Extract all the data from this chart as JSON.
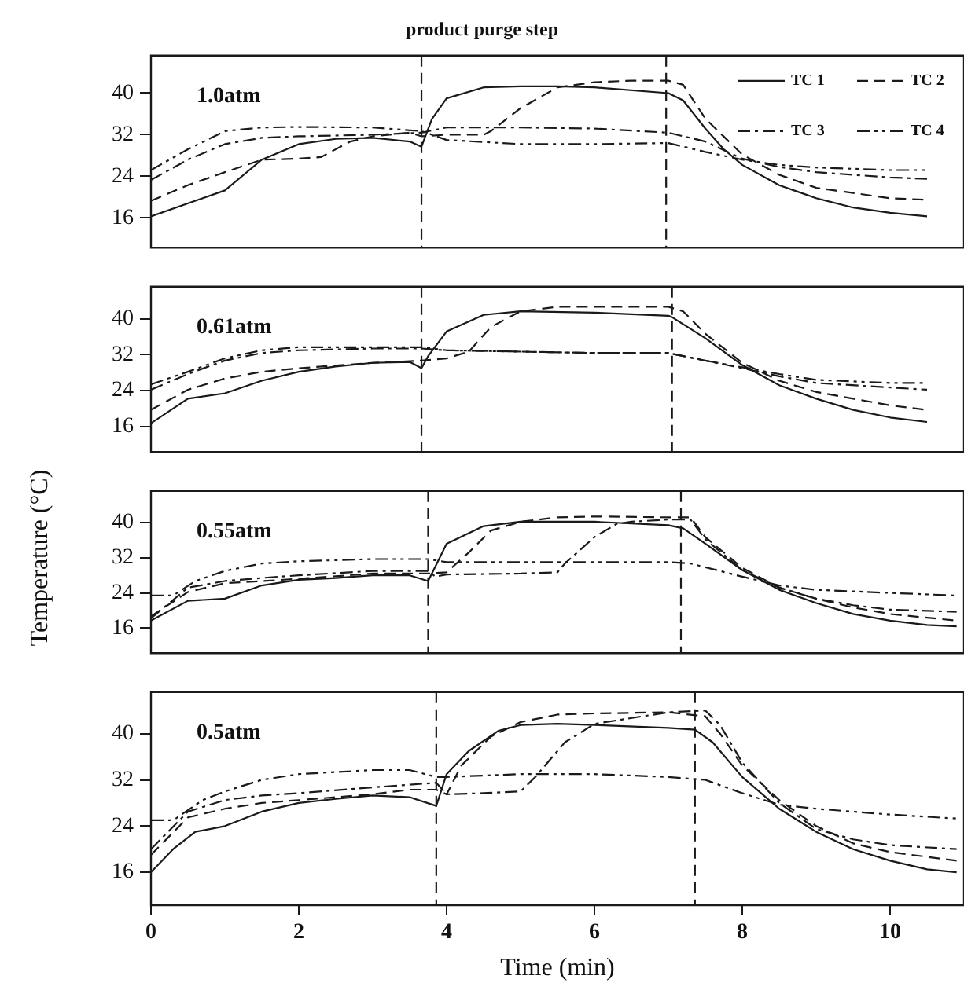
{
  "chart_data": [
    {
      "type": "line",
      "title": "product purge step",
      "annotations": [
        "1.0atm"
      ],
      "xlim": [
        0,
        11
      ],
      "ylim": [
        10.3,
        47.2
      ],
      "yticks": [
        16,
        24,
        32,
        40
      ],
      "tick_labels": "y",
      "legend": "top right",
      "ref_lines": [
        {
          "axis": "x",
          "value": 3.66,
          "color": "#1a1a1a",
          "line_style": "dashed"
        },
        {
          "axis": "x",
          "value": 6.97,
          "color": "#1a1a1a",
          "line_style": "dashed"
        }
      ],
      "series": [
        {
          "name": "TC 1",
          "color": "#1a1a1a",
          "line_style": "solid",
          "x": [
            0,
            1,
            1.5,
            2,
            2.5,
            3,
            3.5,
            3.66,
            3.8,
            4,
            4.5,
            5,
            5.5,
            6,
            7,
            7.2,
            7.5,
            7.75,
            8,
            8.5,
            9,
            9.5,
            10,
            10.5
          ],
          "values": [
            16.3,
            21.3,
            27.2,
            30.2,
            31.2,
            31.4,
            30.7,
            29.7,
            35,
            39,
            41.1,
            41.3,
            41.3,
            41.1,
            40,
            38.6,
            33.2,
            29.2,
            26.2,
            22.3,
            19.8,
            18,
            17,
            16.3
          ]
        },
        {
          "name": "TC 2",
          "color": "#1a1a1a",
          "line_style": "dashed",
          "x": [
            0,
            0.5,
            1,
            1.5,
            2,
            2.3,
            2.7,
            3,
            3.5,
            3.66,
            4,
            4.5,
            4.6,
            5,
            5.5,
            6,
            6.5,
            7,
            7.2,
            7.5,
            8,
            8.5,
            9,
            9.5,
            10,
            10.5
          ],
          "values": [
            19.3,
            22.3,
            24.8,
            27.2,
            27.4,
            27.7,
            30.7,
            31.7,
            32.4,
            31.7,
            32,
            32,
            32.7,
            37.1,
            41.1,
            42.1,
            42.4,
            42.4,
            41.6,
            35.1,
            28.2,
            24.3,
            21.8,
            20.8,
            19.8,
            19.5
          ]
        },
        {
          "name": "TC 3",
          "color": "#1a1a1a",
          "line_style": "dashdot",
          "x": [
            0,
            0.5,
            1,
            1.5,
            2,
            3,
            3.66,
            4,
            5,
            6,
            7,
            7.5,
            8,
            8.5,
            9,
            10,
            10.5
          ],
          "values": [
            23.3,
            27.2,
            30.2,
            31.4,
            31.7,
            32,
            32.4,
            33.4,
            33.4,
            33.2,
            32.4,
            30.7,
            27.4,
            25.8,
            24.8,
            23.8,
            23.5
          ]
        },
        {
          "name": "TC 4",
          "color": "#1a1a1a",
          "line_style": "dashdotdot",
          "x": [
            0,
            0.5,
            1,
            1.5,
            2,
            3,
            3.66,
            4,
            5,
            6,
            7,
            7.5,
            8,
            8.5,
            9,
            10,
            10.5
          ],
          "values": [
            25.2,
            29.2,
            32.7,
            33.4,
            33.5,
            33.4,
            32.7,
            31,
            30.2,
            30.2,
            30.4,
            28.7,
            27.2,
            26.2,
            25.7,
            25.2,
            25.2
          ]
        }
      ]
    },
    {
      "type": "line",
      "annotations": [
        "0.61atm"
      ],
      "xlim": [
        0,
        11
      ],
      "ylim": [
        10.3,
        47.2
      ],
      "yticks": [
        16,
        24,
        32,
        40
      ],
      "tick_labels": "y",
      "ref_lines": [
        {
          "axis": "x",
          "value": 3.66,
          "color": "#1a1a1a",
          "line_style": "dashed"
        },
        {
          "axis": "x",
          "value": 7.05,
          "color": "#1a1a1a",
          "line_style": "dashed"
        }
      ],
      "series": [
        {
          "color": "#1a1a1a",
          "line_style": "solid",
          "x": [
            0,
            0.5,
            1,
            1.5,
            2,
            2.5,
            3,
            3.5,
            3.66,
            3.75,
            4,
            4.5,
            5,
            6,
            7,
            7.05,
            7.5,
            8,
            8.5,
            9,
            9.5,
            10,
            10.5
          ],
          "values": [
            16.7,
            22.2,
            23.4,
            26.2,
            28.2,
            29.4,
            30.2,
            30.4,
            29,
            31.7,
            37.2,
            40.9,
            41.7,
            41.4,
            40.7,
            40.4,
            35.7,
            29.7,
            25.2,
            22.2,
            19.7,
            18,
            17
          ]
        },
        {
          "color": "#1a1a1a",
          "line_style": "dashed",
          "x": [
            0,
            0.5,
            1,
            1.5,
            2,
            3,
            3.66,
            4,
            4.3,
            4.6,
            5,
            5.5,
            6,
            7,
            7.2,
            7.5,
            8,
            8.5,
            9,
            9.5,
            10,
            10.5
          ],
          "values": [
            19.7,
            24.2,
            26.7,
            28.2,
            29,
            30.2,
            30.7,
            31.2,
            32.7,
            38.2,
            41.7,
            42.7,
            42.7,
            42.7,
            41.7,
            36.7,
            30.2,
            26.2,
            23.7,
            22.2,
            20.7,
            19.7
          ]
        },
        {
          "color": "#1a1a1a",
          "line_style": "dashdot",
          "x": [
            0,
            0.5,
            1,
            1.5,
            2,
            3,
            3.66,
            4,
            5,
            6,
            7,
            7.5,
            8,
            8.5,
            9,
            10,
            10.5
          ],
          "values": [
            24.2,
            27.7,
            30.7,
            32.4,
            33,
            33.4,
            33.4,
            33,
            32.7,
            32.4,
            32.4,
            30.7,
            29,
            27.2,
            25.7,
            24.7,
            24.2
          ]
        },
        {
          "color": "#1a1a1a",
          "line_style": "dashdotdot",
          "x": [
            0,
            0.5,
            1,
            1.5,
            2,
            3,
            3.66,
            4,
            5,
            6,
            7,
            7.5,
            8,
            8.5,
            9,
            10,
            10.5
          ],
          "values": [
            25.4,
            28.2,
            31.2,
            33,
            33.7,
            33.7,
            33.7,
            33,
            32.7,
            32.4,
            32.4,
            30.7,
            29.2,
            27.7,
            26.4,
            25.7,
            25.7
          ]
        }
      ]
    },
    {
      "type": "line",
      "ylabel": "Temperature (°C)",
      "annotations": [
        "0.55atm"
      ],
      "xlim": [
        0,
        11
      ],
      "ylim": [
        10.3,
        47.2
      ],
      "yticks": [
        16,
        24,
        32,
        40
      ],
      "tick_labels": "y",
      "ref_lines": [
        {
          "axis": "x",
          "value": 3.75,
          "color": "#1a1a1a",
          "line_style": "dashed"
        },
        {
          "axis": "x",
          "value": 7.17,
          "color": "#1a1a1a",
          "line_style": "dashed"
        }
      ],
      "series": [
        {
          "color": "#1a1a1a",
          "line_style": "solid",
          "x": [
            0,
            0.5,
            1,
            1.5,
            2,
            2.5,
            3,
            3.5,
            3.75,
            4,
            4.5,
            5,
            6,
            7,
            7.2,
            7.5,
            8,
            8.5,
            9,
            9.5,
            10,
            10.5,
            10.9
          ],
          "values": [
            17.7,
            22.2,
            22.7,
            25.7,
            27,
            27.4,
            28,
            28,
            26.7,
            35.2,
            39.2,
            40.2,
            40.2,
            39.4,
            38.7,
            35.2,
            29.2,
            24.7,
            21.7,
            19.2,
            17.7,
            16.7,
            16.4
          ]
        },
        {
          "color": "#1a1a1a",
          "line_style": "dashed",
          "x": [
            0,
            0.5,
            1,
            1.5,
            2,
            3,
            3.75,
            4,
            4.3,
            4.6,
            5,
            5.5,
            6,
            7,
            7.3,
            7.5,
            8,
            8.5,
            9,
            9.5,
            10,
            10.9
          ],
          "values": [
            18.7,
            24.2,
            26.2,
            26.7,
            27.2,
            28.4,
            28.4,
            28.7,
            33.2,
            38.2,
            40.2,
            41.2,
            41.4,
            41.2,
            41.2,
            36.7,
            29.7,
            25.2,
            22.7,
            20.7,
            19.2,
            17.7
          ]
        },
        {
          "color": "#1a1a1a",
          "line_style": "dashdot",
          "x": [
            0,
            0.5,
            1,
            1.5,
            2,
            3,
            3.75,
            3.85,
            4,
            5,
            5.5,
            5.6,
            6,
            6.3,
            6.5,
            7,
            7.3,
            7.5,
            8,
            8.5,
            9,
            9.5,
            10,
            10.9
          ],
          "values": [
            18.2,
            25.2,
            26.7,
            27.4,
            28,
            29,
            29,
            27.7,
            28.2,
            28.4,
            28.7,
            30.7,
            36.7,
            39.7,
            40.2,
            40.7,
            40.7,
            36.2,
            29.2,
            25.2,
            22.7,
            21.2,
            20.2,
            19.7
          ]
        },
        {
          "color": "#1a1a1a",
          "line_style": "dashdotdot",
          "x": [
            0,
            0.3,
            0.6,
            1,
            1.5,
            2,
            3,
            3.75,
            4,
            5,
            6,
            7,
            7.3,
            8,
            8.5,
            9,
            10,
            10.9
          ],
          "values": [
            23.4,
            23.4,
            26.7,
            29,
            30.7,
            31.2,
            31.7,
            31.7,
            31,
            31,
            31,
            31,
            30.7,
            27.7,
            25.7,
            24.7,
            24,
            23.4
          ]
        }
      ]
    },
    {
      "type": "line",
      "annotations": [
        "0.5atm"
      ],
      "xlabel": "Time (min)",
      "xlim": [
        0,
        11
      ],
      "xticks": [
        0,
        2,
        4,
        6,
        8,
        10
      ],
      "ylim": [
        10.3,
        47.2
      ],
      "yticks": [
        16,
        24,
        32,
        40
      ],
      "ref_lines": [
        {
          "axis": "x",
          "value": 3.86,
          "color": "#1a1a1a",
          "line_style": "dashed"
        },
        {
          "axis": "x",
          "value": 7.36,
          "color": "#1a1a1a",
          "line_style": "dashed"
        }
      ],
      "series": [
        {
          "color": "#1a1a1a",
          "line_style": "solid",
          "x": [
            0,
            0.3,
            0.6,
            1,
            1.5,
            2,
            2.5,
            3,
            3.5,
            3.86,
            4,
            4.3,
            4.7,
            5,
            5.5,
            6,
            7,
            7.36,
            7.6,
            8,
            8.5,
            9,
            9.5,
            10,
            10.5,
            10.9
          ],
          "values": [
            16,
            20,
            23,
            24,
            26.5,
            28,
            28.7,
            29.3,
            29,
            27.5,
            33,
            37,
            40.5,
            41.5,
            41.7,
            41.5,
            41,
            40.7,
            38.5,
            32.5,
            27,
            23,
            20,
            18,
            16.5,
            16
          ]
        },
        {
          "color": "#1a1a1a",
          "line_style": "dashed",
          "x": [
            0,
            0.5,
            1,
            1.5,
            2,
            3,
            3.5,
            3.86,
            4,
            4.2,
            4.6,
            5,
            5.5,
            6,
            7,
            7.5,
            7.7,
            8,
            8.5,
            9,
            9.5,
            10,
            10.9
          ],
          "values": [
            19,
            25.5,
            27,
            28,
            28.5,
            29.5,
            30.3,
            30.3,
            29.5,
            34.5,
            39.5,
            42,
            43.3,
            43.5,
            43.7,
            43,
            40,
            34.5,
            28.5,
            24,
            21,
            19.5,
            18
          ]
        },
        {
          "color": "#1a1a1a",
          "line_style": "dashdot",
          "x": [
            0,
            0.5,
            1,
            1.5,
            2,
            3,
            3.86,
            4,
            4.5,
            5,
            5.2,
            5.6,
            6,
            7,
            7.5,
            7.7,
            8,
            8.5,
            9,
            9.5,
            10,
            10.9
          ],
          "values": [
            20,
            26.5,
            28.5,
            29.3,
            29.7,
            30.7,
            31.5,
            29.5,
            29.7,
            30,
            32.5,
            38.5,
            41.7,
            43.7,
            44,
            41.5,
            35,
            28,
            23.5,
            21.7,
            20.7,
            20
          ]
        },
        {
          "color": "#1a1a1a",
          "line_style": "dashdotdot",
          "x": [
            0,
            0.3,
            0.7,
            1,
            1.5,
            2,
            3,
            3.5,
            3.86,
            4,
            5,
            6,
            7,
            7.5,
            8,
            8.5,
            9,
            10,
            10.9
          ],
          "values": [
            25,
            25,
            28.5,
            30,
            32,
            33,
            33.7,
            33.7,
            32.5,
            32.5,
            33,
            33,
            32.5,
            32,
            29.7,
            27.7,
            27,
            26,
            25.3
          ]
        }
      ]
    }
  ]
}
